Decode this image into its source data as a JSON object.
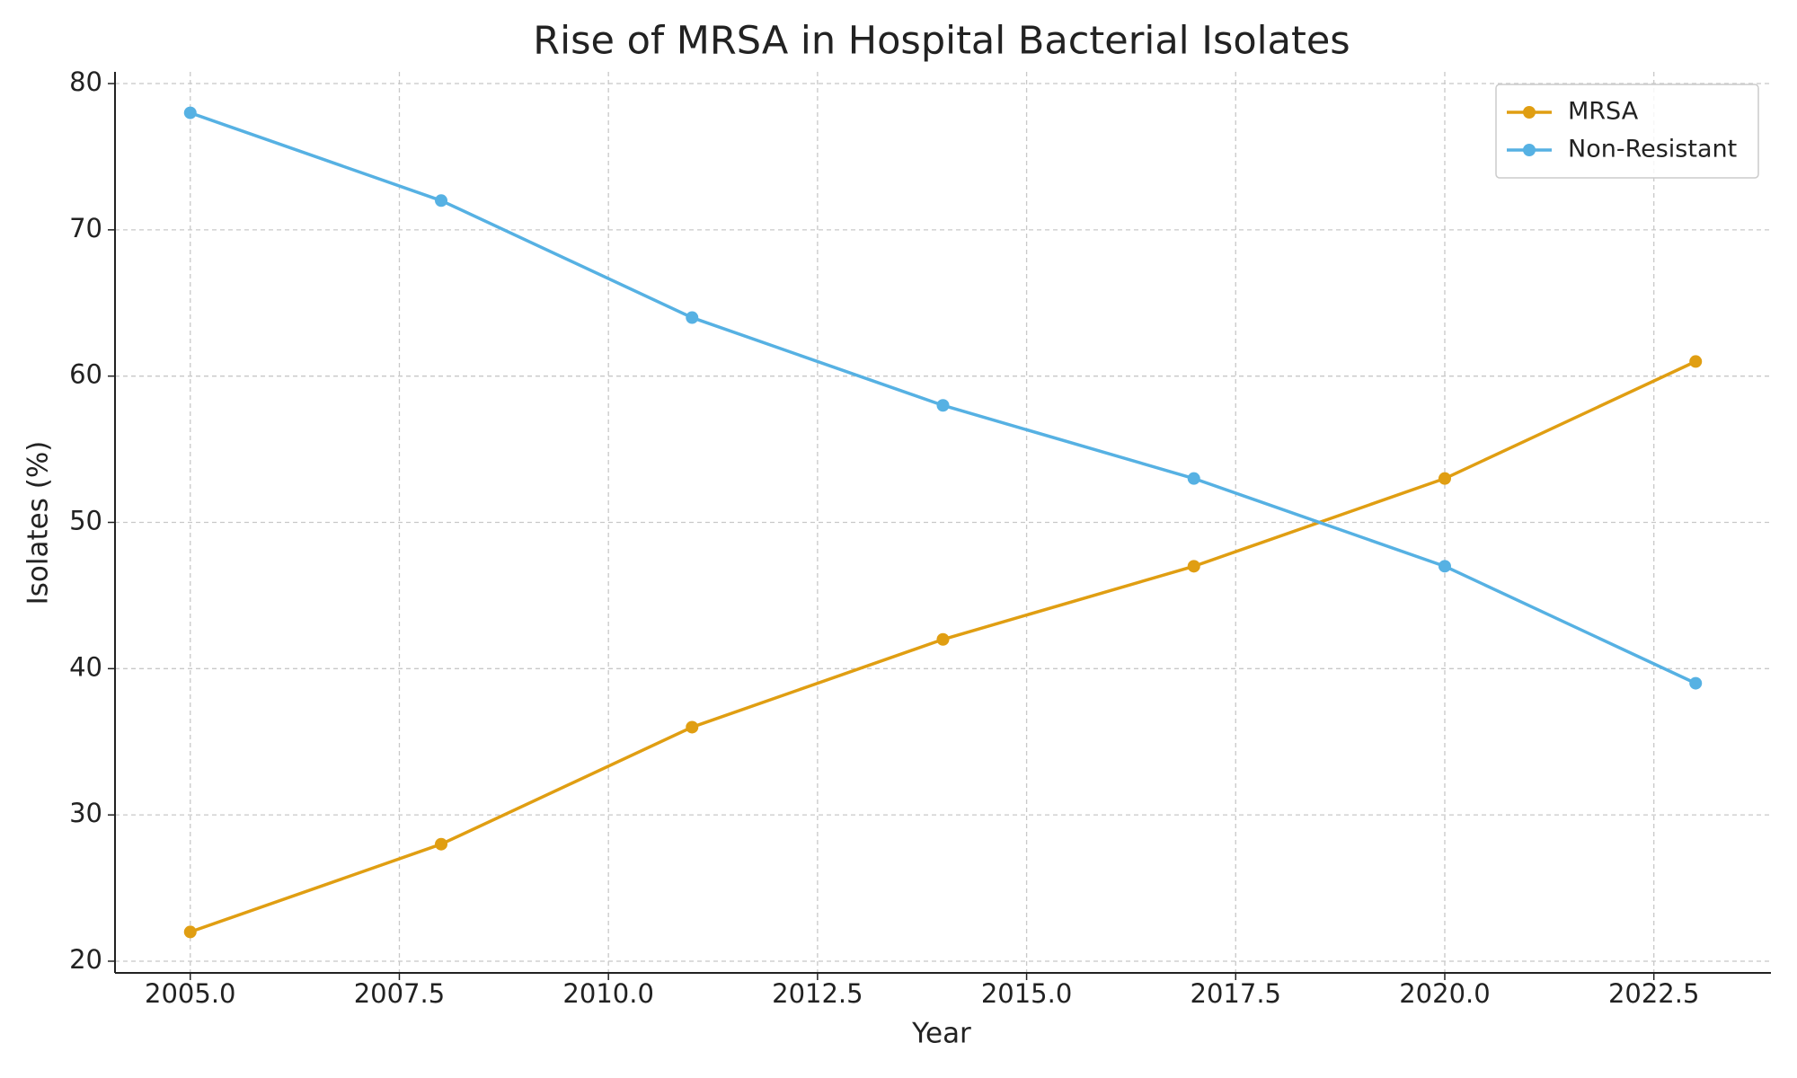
{
  "chart_data": {
    "type": "line",
    "title": "Rise of MRSA in Hospital Bacterial Isolates",
    "x_label": "Year",
    "y_label": "Isolates (%)",
    "x": [
      2005,
      2008,
      2011,
      2014,
      2017,
      2020,
      2023
    ],
    "series": [
      {
        "name": "MRSA",
        "color": "#e09e12",
        "values": [
          22,
          28,
          36,
          42,
          47,
          53,
          61
        ]
      },
      {
        "name": "Non-Resistant",
        "color": "#56b1e3",
        "values": [
          78,
          72,
          64,
          58,
          53,
          47,
          39
        ]
      }
    ],
    "xlim": [
      2004.1,
      2023.9
    ],
    "xticks": [
      {
        "value": 2005,
        "label": "2005.0"
      },
      {
        "value": 2007.5,
        "label": "2007.5"
      },
      {
        "value": 2010,
        "label": "2010.0"
      },
      {
        "value": 2012.5,
        "label": "2012.5"
      },
      {
        "value": 2015,
        "label": "2015.0"
      },
      {
        "value": 2017.5,
        "label": "2017.5"
      },
      {
        "value": 2020,
        "label": "2020.0"
      },
      {
        "value": 2022.5,
        "label": "2022.5"
      }
    ],
    "ylim": [
      19.2,
      80.8
    ],
    "yticks": [
      20,
      30,
      40,
      50,
      60,
      70,
      80
    ],
    "grid": true,
    "legend": "upper right"
  }
}
